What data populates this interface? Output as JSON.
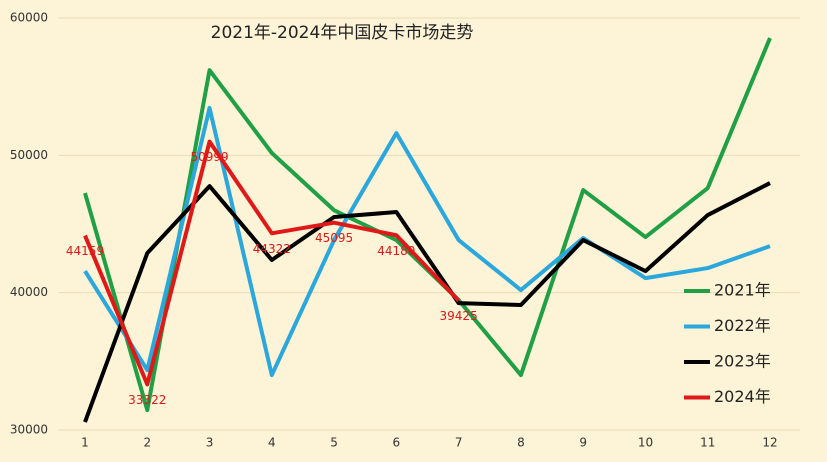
{
  "chart_data": {
    "type": "line",
    "title": "2021年-2024年中国皮卡市场走势",
    "categories": [
      "1",
      "2",
      "3",
      "4",
      "5",
      "6",
      "7",
      "8",
      "9",
      "10",
      "11",
      "12"
    ],
    "series": [
      {
        "name": "2021年",
        "color": "#1fa045",
        "values": [
          47250,
          31450,
          56200,
          50170,
          46000,
          43830,
          39460,
          34000,
          47470,
          44050,
          47620,
          58540
        ]
      },
      {
        "name": "2022年",
        "color": "#2aa7dc",
        "values": [
          41570,
          34360,
          53450,
          34000,
          43830,
          51620,
          43830,
          40190,
          43980,
          41060,
          41790,
          43390
        ]
      },
      {
        "name": "2023年",
        "color": "#000000",
        "values": [
          30580,
          42880,
          47760,
          42380,
          45510,
          45870,
          39240,
          39100,
          43830,
          41570,
          45650,
          47980
        ]
      },
      {
        "name": "2024年",
        "color": "#e01818",
        "values": [
          44159,
          33322,
          50999,
          44322,
          45095,
          44180,
          39425,
          null,
          null,
          null,
          null,
          null
        ],
        "data_labels": true
      }
    ],
    "ylim": [
      30000,
      60000
    ],
    "yticks": [
      30000,
      40000,
      50000,
      60000
    ],
    "grid": true,
    "legend": "lower right"
  }
}
